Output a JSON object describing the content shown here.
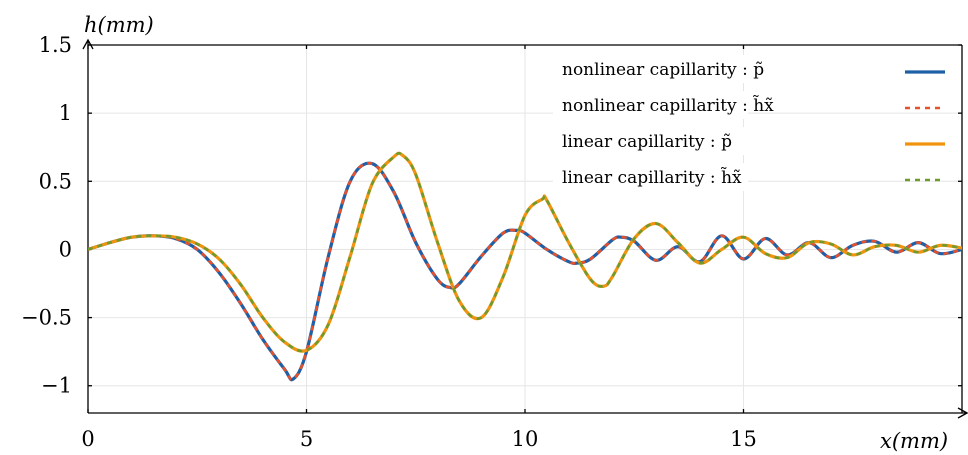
{
  "chart_data": {
    "type": "line",
    "title": "",
    "xlabel": "x(mm)",
    "ylabel": "h(mm)",
    "xlim": [
      0,
      20
    ],
    "ylim": [
      -1.2,
      1.5
    ],
    "x_ticks": [
      0,
      5,
      10,
      15
    ],
    "x_tick_labels": [
      "0",
      "5",
      "10",
      "15"
    ],
    "y_ticks": [
      1.5,
      1,
      0.5,
      0,
      -0.5,
      -1
    ],
    "y_tick_labels": [
      "1.5",
      "1",
      "0.5",
      "0",
      "−0.5",
      "−1"
    ],
    "grid": true,
    "legend_position": "top-right",
    "legend": [
      {
        "label": "nonlinear capillarity : p̃",
        "color": "#1f5fa6",
        "dash": "solid"
      },
      {
        "label": "nonlinear capillarity : h̃x̃",
        "color": "#e8502a",
        "dash": "dotted"
      },
      {
        "label": "linear capillarity : p̃",
        "color": "#f0930f",
        "dash": "solid"
      },
      {
        "label": "linear capillarity : h̃x̃",
        "color": "#6e9a2e",
        "dash": "dotted"
      }
    ],
    "series": [
      {
        "name": "nonlinear capillarity : p̃",
        "color": "#1f5fa6",
        "dash": "solid",
        "x": [
          0,
          0.5,
          1,
          1.5,
          2,
          2.5,
          3,
          3.5,
          4,
          4.5,
          4.7,
          5,
          5.5,
          6,
          6.5,
          7,
          7.5,
          8,
          8.3,
          8.5,
          9,
          9.5,
          9.8,
          10,
          10.5,
          11,
          11.2,
          11.5,
          12,
          12.2,
          12.5,
          13,
          13.5,
          14,
          14.5,
          15,
          15.5,
          16,
          16.5,
          17,
          17.5,
          18,
          18.5,
          19,
          19.5,
          20
        ],
        "y": [
          0,
          0.05,
          0.09,
          0.1,
          0.08,
          0.0,
          -0.17,
          -0.4,
          -0.66,
          -0.88,
          -0.95,
          -0.75,
          -0.05,
          0.5,
          0.63,
          0.42,
          0.05,
          -0.22,
          -0.28,
          -0.25,
          -0.05,
          0.12,
          0.14,
          0.12,
          0.0,
          -0.09,
          -0.1,
          -0.07,
          0.07,
          0.09,
          0.06,
          -0.08,
          0.02,
          -0.09,
          0.1,
          -0.07,
          0.08,
          -0.04,
          0.05,
          -0.06,
          0.03,
          0.06,
          -0.02,
          0.05,
          -0.03,
          0.0
        ]
      },
      {
        "name": "nonlinear capillarity : h̃x̃",
        "color": "#e8502a",
        "dash": "dotted",
        "x": [
          0,
          0.5,
          1,
          1.5,
          2,
          2.5,
          3,
          3.5,
          4,
          4.5,
          4.7,
          5,
          5.5,
          6,
          6.5,
          7,
          7.5,
          8,
          8.3,
          8.5,
          9,
          9.5,
          9.8,
          10,
          10.5,
          11,
          11.2,
          11.5,
          12,
          12.2,
          12.5,
          13,
          13.5,
          14,
          14.5,
          15,
          15.5,
          16,
          16.5,
          17,
          17.5,
          18,
          18.5,
          19,
          19.5,
          20
        ],
        "y": [
          0,
          0.05,
          0.09,
          0.1,
          0.08,
          0.0,
          -0.17,
          -0.4,
          -0.66,
          -0.88,
          -0.95,
          -0.75,
          -0.05,
          0.5,
          0.63,
          0.42,
          0.05,
          -0.22,
          -0.28,
          -0.25,
          -0.05,
          0.12,
          0.14,
          0.12,
          0.0,
          -0.09,
          -0.1,
          -0.07,
          0.07,
          0.09,
          0.06,
          -0.08,
          0.02,
          -0.09,
          0.1,
          -0.07,
          0.08,
          -0.04,
          0.05,
          -0.06,
          0.03,
          0.06,
          -0.02,
          0.05,
          -0.03,
          0.0
        ]
      },
      {
        "name": "linear capillarity : p̃",
        "color": "#f0930f",
        "dash": "solid",
        "x": [
          0,
          0.5,
          1,
          1.5,
          2,
          2.5,
          3,
          3.5,
          4,
          4.5,
          5,
          5.5,
          6,
          6.5,
          7,
          7.2,
          7.5,
          8,
          8.5,
          9,
          9.5,
          10,
          10.4,
          10.5,
          11,
          11.5,
          11.8,
          12,
          12.5,
          13,
          13.5,
          14,
          14.5,
          15,
          15.5,
          16,
          16.5,
          17,
          17.5,
          18,
          18.5,
          19,
          19.5,
          20
        ],
        "y": [
          0,
          0.05,
          0.09,
          0.1,
          0.09,
          0.04,
          -0.07,
          -0.26,
          -0.5,
          -0.68,
          -0.74,
          -0.55,
          -0.05,
          0.48,
          0.68,
          0.69,
          0.55,
          0.05,
          -0.38,
          -0.5,
          -0.2,
          0.25,
          0.37,
          0.36,
          0.05,
          -0.22,
          -0.27,
          -0.2,
          0.08,
          0.19,
          0.05,
          -0.1,
          0.0,
          0.09,
          -0.03,
          -0.06,
          0.05,
          0.04,
          -0.04,
          0.02,
          0.03,
          -0.02,
          0.03,
          0.01
        ]
      },
      {
        "name": "linear capillarity : h̃x̃",
        "color": "#6e9a2e",
        "dash": "dotted",
        "x": [
          0,
          0.5,
          1,
          1.5,
          2,
          2.5,
          3,
          3.5,
          4,
          4.5,
          5,
          5.5,
          6,
          6.5,
          7,
          7.2,
          7.5,
          8,
          8.5,
          9,
          9.5,
          10,
          10.4,
          10.5,
          11,
          11.5,
          11.8,
          12,
          12.5,
          13,
          13.5,
          14,
          14.5,
          15,
          15.5,
          16,
          16.5,
          17,
          17.5,
          18,
          18.5,
          19,
          19.5,
          20
        ],
        "y": [
          0,
          0.05,
          0.09,
          0.1,
          0.09,
          0.04,
          -0.07,
          -0.26,
          -0.5,
          -0.68,
          -0.74,
          -0.55,
          -0.05,
          0.48,
          0.68,
          0.69,
          0.55,
          0.05,
          -0.38,
          -0.5,
          -0.2,
          0.25,
          0.37,
          0.36,
          0.05,
          -0.22,
          -0.27,
          -0.2,
          0.08,
          0.19,
          0.05,
          -0.1,
          0.0,
          0.09,
          -0.03,
          -0.06,
          0.05,
          0.04,
          -0.04,
          0.02,
          0.03,
          -0.02,
          0.03,
          0.01
        ]
      }
    ]
  }
}
